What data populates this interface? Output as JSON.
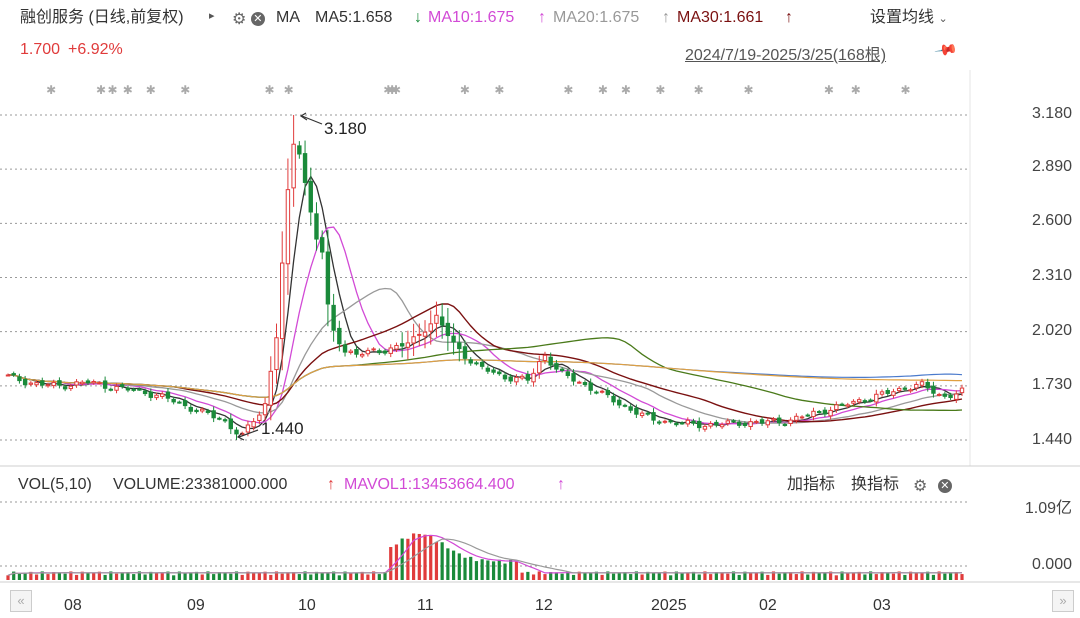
{
  "header": {
    "title": "融创服务 (日线,前复权)",
    "ma_label": "MA",
    "ma5": "MA5:1.658",
    "ma5_arrow": "↓",
    "ma10": "MA10:1.675",
    "ma10_arrow": "↑",
    "ma20": "MA20:1.675",
    "ma20_arrow": "↑",
    "ma30": "MA30:1.661",
    "ma30_arrow": "↑",
    "settings_label": "设置均线",
    "price": "1.700",
    "change": "+6.92%",
    "date_range": "2024/7/19-2025/3/25(168根)"
  },
  "volume_header": {
    "label": "VOL(5,10)",
    "volume": "VOLUME:23381000.000",
    "volume_arrow": "↑",
    "mavol": "MAVOL1:13453664.400",
    "mavol_arrow": "↑",
    "add_indicator": "加指标",
    "switch_indicator": "换指标"
  },
  "colors": {
    "up": "#e03b3b",
    "down": "#1a8a3a",
    "ma5": "#333333",
    "ma10": "#d24ad6",
    "ma20": "#999999",
    "ma30": "#7a1010",
    "ma60": "#4a7a1a",
    "ma120": "#4a7acc",
    "ma250": "#e0a040"
  },
  "chart_data": {
    "type": "candlestick",
    "y_ticks": [
      "3.180",
      "2.890",
      "2.600",
      "2.310",
      "2.020",
      "1.730",
      "1.440"
    ],
    "y_range": [
      1.44,
      3.18
    ],
    "x_ticks": [
      "08",
      "09",
      "10",
      "11",
      "12",
      "2025",
      "02",
      "03"
    ],
    "annotations": {
      "high": "3.180",
      "low": "1.440"
    },
    "volume_ticks": [
      "1.09亿",
      "0.000"
    ],
    "close_points": [
      [
        "2024-07-19",
        1.78
      ],
      [
        "2024-07-26",
        1.74
      ],
      [
        "2024-08-02",
        1.73
      ],
      [
        "2024-08-09",
        1.75
      ],
      [
        "2024-08-16",
        1.72
      ],
      [
        "2024-08-23",
        1.7
      ],
      [
        "2024-08-30",
        1.66
      ],
      [
        "2024-09-06",
        1.6
      ],
      [
        "2024-09-13",
        1.55
      ],
      [
        "2024-09-18",
        1.46
      ],
      [
        "2024-09-24",
        1.62
      ],
      [
        "2024-09-27",
        1.98
      ],
      [
        "2024-09-30",
        2.75
      ],
      [
        "2024-10-02",
        3.1
      ],
      [
        "2024-10-07",
        2.55
      ],
      [
        "2024-10-09",
        2.45
      ],
      [
        "2024-10-11",
        2.05
      ],
      [
        "2024-10-15",
        1.92
      ],
      [
        "2024-10-18",
        1.9
      ],
      [
        "2024-10-25",
        1.92
      ],
      [
        "2024-11-01",
        1.96
      ],
      [
        "2024-11-08",
        2.1
      ],
      [
        "2024-11-12",
        1.96
      ],
      [
        "2024-11-18",
        1.84
      ],
      [
        "2024-11-25",
        1.78
      ],
      [
        "2024-12-02",
        1.76
      ],
      [
        "2024-12-06",
        1.9
      ],
      [
        "2024-12-10",
        1.8
      ],
      [
        "2024-12-18",
        1.72
      ],
      [
        "2024-12-26",
        1.63
      ],
      [
        "2025-01-03",
        1.55
      ],
      [
        "2025-01-10",
        1.53
      ],
      [
        "2025-01-17",
        1.52
      ],
      [
        "2025-01-24",
        1.53
      ],
      [
        "2025-02-07",
        1.54
      ],
      [
        "2025-02-14",
        1.58
      ],
      [
        "2025-02-21",
        1.62
      ],
      [
        "2025-02-28",
        1.66
      ],
      [
        "2025-03-07",
        1.7
      ],
      [
        "2025-03-14",
        1.74
      ],
      [
        "2025-03-20",
        1.67
      ],
      [
        "2025-03-25",
        1.7
      ]
    ]
  }
}
